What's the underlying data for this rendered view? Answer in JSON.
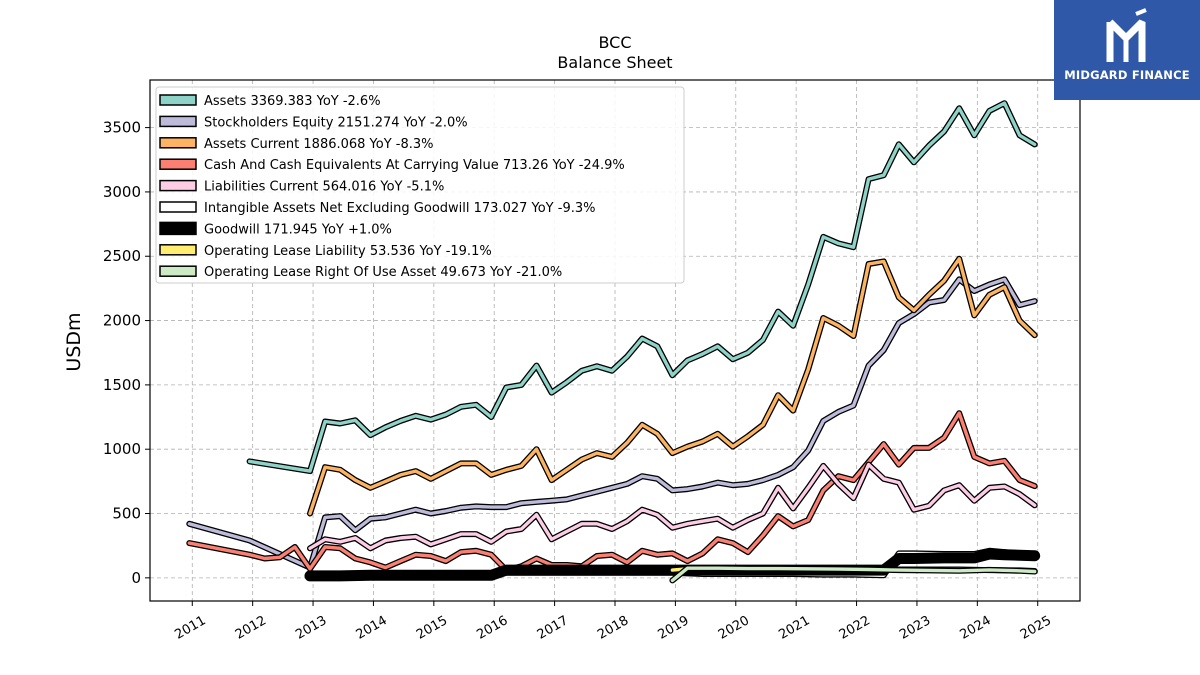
{
  "chart_data": {
    "type": "line",
    "title": "BCC",
    "subtitle": "Balance  Sheet",
    "ylabel": "USDm",
    "xlim": [
      2010.3,
      2025.7
    ],
    "ylim": [
      -180,
      3870
    ],
    "yticks": [
      0,
      500,
      1000,
      1500,
      2000,
      2500,
      3000,
      3500
    ],
    "xticks": [
      2011,
      2012,
      2013,
      2014,
      2015,
      2016,
      2017,
      2018,
      2019,
      2020,
      2021,
      2022,
      2023,
      2024,
      2025
    ],
    "xtick_labels": [
      "2011",
      "2012",
      "2013",
      "2014",
      "2015",
      "2016",
      "2017",
      "2018",
      "2019",
      "2020",
      "2021",
      "2022",
      "2023",
      "2024",
      "2025"
    ],
    "grid": true,
    "legend_position": "top-left",
    "series": [
      {
        "name": "Assets  3369.383 YoY -2.6%",
        "color": "#8dd3c7",
        "x": [
          2011.95,
          2012.95,
          2013.2,
          2013.45,
          2013.7,
          2013.95,
          2014.2,
          2014.45,
          2014.7,
          2014.95,
          2015.2,
          2015.45,
          2015.7,
          2015.95,
          2016.2,
          2016.45,
          2016.7,
          2016.95,
          2017.2,
          2017.45,
          2017.7,
          2017.95,
          2018.2,
          2018.45,
          2018.7,
          2018.95,
          2019.2,
          2019.45,
          2019.7,
          2019.95,
          2020.2,
          2020.45,
          2020.7,
          2020.95,
          2021.2,
          2021.45,
          2021.7,
          2021.95,
          2022.2,
          2022.45,
          2022.7,
          2022.95,
          2023.2,
          2023.45,
          2023.7,
          2023.95,
          2024.2,
          2024.45,
          2024.7,
          2024.95
        ],
        "y": [
          905,
          830,
          1215,
          1200,
          1225,
          1110,
          1170,
          1220,
          1260,
          1230,
          1270,
          1330,
          1345,
          1250,
          1480,
          1500,
          1650,
          1440,
          1520,
          1610,
          1645,
          1610,
          1720,
          1860,
          1800,
          1575,
          1690,
          1740,
          1800,
          1700,
          1750,
          1850,
          2070,
          1960,
          2280,
          2650,
          2600,
          2570,
          3100,
          3130,
          3370,
          3230,
          3360,
          3470,
          3650,
          3440,
          3630,
          3690,
          3440,
          3369
        ]
      },
      {
        "name": "Stockholders Equity  2151.274 YoY -2.0%",
        "color": "#bebada",
        "x": [
          2010.95,
          2011.95,
          2012.95,
          2013.2,
          2013.45,
          2013.7,
          2013.95,
          2014.2,
          2014.45,
          2014.7,
          2014.95,
          2015.2,
          2015.45,
          2015.7,
          2015.95,
          2016.2,
          2016.45,
          2016.7,
          2016.95,
          2017.2,
          2017.45,
          2017.7,
          2017.95,
          2018.2,
          2018.45,
          2018.7,
          2018.95,
          2019.2,
          2019.45,
          2019.7,
          2019.95,
          2020.2,
          2020.45,
          2020.7,
          2020.95,
          2021.2,
          2021.45,
          2021.7,
          2021.95,
          2022.2,
          2022.45,
          2022.7,
          2022.95,
          2023.2,
          2023.45,
          2023.7,
          2023.95,
          2024.2,
          2024.45,
          2024.7,
          2024.95
        ],
        "y": [
          420,
          290,
          80,
          470,
          480,
          370,
          460,
          470,
          500,
          530,
          500,
          520,
          545,
          555,
          550,
          550,
          580,
          590,
          600,
          610,
          640,
          670,
          700,
          730,
          790,
          770,
          680,
          690,
          710,
          740,
          720,
          730,
          760,
          800,
          860,
          990,
          1220,
          1290,
          1340,
          1650,
          1770,
          1980,
          2050,
          2140,
          2160,
          2320,
          2230,
          2280,
          2320,
          2120,
          2151
        ]
      },
      {
        "name": "Assets Current  1886.068 YoY -8.3%",
        "color": "#fdb462",
        "x": [
          2012.95,
          2013.2,
          2013.45,
          2013.7,
          2013.95,
          2014.2,
          2014.45,
          2014.7,
          2014.95,
          2015.2,
          2015.45,
          2015.7,
          2015.95,
          2016.2,
          2016.45,
          2016.7,
          2016.95,
          2017.2,
          2017.45,
          2017.7,
          2017.95,
          2018.2,
          2018.45,
          2018.7,
          2018.95,
          2019.2,
          2019.45,
          2019.7,
          2019.95,
          2020.2,
          2020.45,
          2020.7,
          2020.95,
          2021.2,
          2021.45,
          2021.7,
          2021.95,
          2022.2,
          2022.45,
          2022.7,
          2022.95,
          2023.2,
          2023.45,
          2023.7,
          2023.95,
          2024.2,
          2024.45,
          2024.7,
          2024.95
        ],
        "y": [
          500,
          860,
          840,
          760,
          700,
          750,
          800,
          830,
          770,
          830,
          890,
          890,
          800,
          840,
          870,
          1000,
          760,
          840,
          920,
          970,
          940,
          1050,
          1190,
          1120,
          970,
          1020,
          1060,
          1120,
          1020,
          1100,
          1190,
          1420,
          1300,
          1620,
          2020,
          1960,
          1880,
          2440,
          2460,
          2180,
          2080,
          2200,
          2310,
          2480,
          2040,
          2200,
          2260,
          2000,
          1886
        ]
      },
      {
        "name": "Cash And Cash Equivalents At Carrying Value  713.26 YoY -24.9%",
        "color": "#fb8072",
        "x": [
          2010.95,
          2011.95,
          2012.2,
          2012.45,
          2012.7,
          2012.95,
          2013.2,
          2013.45,
          2013.7,
          2013.95,
          2014.2,
          2014.45,
          2014.7,
          2014.95,
          2015.2,
          2015.45,
          2015.7,
          2015.95,
          2016.2,
          2016.45,
          2016.7,
          2016.95,
          2017.2,
          2017.45,
          2017.7,
          2017.95,
          2018.2,
          2018.45,
          2018.7,
          2018.95,
          2019.2,
          2019.45,
          2019.7,
          2019.95,
          2020.2,
          2020.45,
          2020.7,
          2020.95,
          2021.2,
          2021.45,
          2021.7,
          2021.95,
          2022.2,
          2022.45,
          2022.7,
          2022.95,
          2023.2,
          2023.45,
          2023.7,
          2023.95,
          2024.2,
          2024.45,
          2024.7,
          2024.95
        ],
        "y": [
          270,
          180,
          150,
          160,
          240,
          70,
          240,
          230,
          150,
          120,
          80,
          130,
          180,
          170,
          130,
          200,
          210,
          180,
          60,
          90,
          150,
          100,
          100,
          90,
          170,
          180,
          120,
          210,
          180,
          190,
          130,
          190,
          300,
          270,
          200,
          330,
          480,
          400,
          450,
          680,
          790,
          760,
          900,
          1040,
          880,
          1010,
          1010,
          1090,
          1280,
          940,
          890,
          910,
          760,
          713
        ]
      },
      {
        "name": "Liabilities Current  564.016 YoY -5.1%",
        "color": "#fccde5",
        "x": [
          2012.95,
          2013.2,
          2013.45,
          2013.7,
          2013.95,
          2014.2,
          2014.45,
          2014.7,
          2014.95,
          2015.2,
          2015.45,
          2015.7,
          2015.95,
          2016.2,
          2016.45,
          2016.7,
          2016.95,
          2017.2,
          2017.45,
          2017.7,
          2017.95,
          2018.2,
          2018.45,
          2018.7,
          2018.95,
          2019.2,
          2019.45,
          2019.7,
          2019.95,
          2020.2,
          2020.45,
          2020.7,
          2020.95,
          2021.2,
          2021.45,
          2021.7,
          2021.95,
          2022.2,
          2022.45,
          2022.7,
          2022.95,
          2023.2,
          2023.45,
          2023.7,
          2023.95,
          2024.2,
          2024.45,
          2024.7,
          2024.95
        ],
        "y": [
          230,
          300,
          280,
          310,
          230,
          290,
          310,
          320,
          260,
          300,
          340,
          340,
          280,
          360,
          380,
          490,
          300,
          360,
          420,
          420,
          380,
          440,
          530,
          490,
          390,
          420,
          440,
          460,
          390,
          450,
          500,
          700,
          540,
          700,
          870,
          730,
          620,
          880,
          770,
          740,
          530,
          560,
          680,
          720,
          600,
          700,
          710,
          650,
          564
        ]
      },
      {
        "name": "Intangible Assets Net Excluding Goodwill  173.027 YoY -9.3%",
        "color": "#ffffff",
        "x": [
          2012.95,
          2013.45,
          2013.95,
          2014.45,
          2014.95,
          2015.45,
          2015.95,
          2016.2,
          2016.45,
          2016.95,
          2017.45,
          2017.95,
          2018.45,
          2018.95,
          2019.45,
          2019.95,
          2020.45,
          2020.95,
          2021.45,
          2021.95,
          2022.45,
          2022.7,
          2022.95,
          2023.45,
          2023.95,
          2024.2,
          2024.45,
          2024.95
        ],
        "y": [
          10,
          10,
          10,
          10,
          10,
          10,
          10,
          40,
          40,
          40,
          40,
          40,
          40,
          40,
          30,
          30,
          30,
          30,
          25,
          25,
          20,
          190,
          190,
          185,
          185,
          210,
          200,
          173
        ]
      },
      {
        "name": "Goodwill  171.945 YoY +1.0%",
        "color": "#000000",
        "x": [
          2012.95,
          2013.45,
          2013.95,
          2014.45,
          2014.95,
          2015.45,
          2015.95,
          2016.2,
          2016.45,
          2016.95,
          2017.45,
          2017.95,
          2018.45,
          2018.95,
          2019.45,
          2019.95,
          2020.45,
          2020.95,
          2021.45,
          2021.95,
          2022.45,
          2022.7,
          2022.95,
          2023.45,
          2023.95,
          2024.2,
          2024.45,
          2024.95
        ],
        "y": [
          15,
          15,
          20,
          20,
          20,
          20,
          20,
          60,
          60,
          60,
          60,
          60,
          60,
          60,
          60,
          60,
          60,
          60,
          60,
          60,
          60,
          150,
          150,
          155,
          155,
          185,
          180,
          172
        ]
      },
      {
        "name": "Operating Lease Liability  53.536 YoY -19.1%",
        "color": "#ffed6f",
        "x": [
          2018.95,
          2019.2,
          2019.7,
          2020.2,
          2020.7,
          2021.2,
          2021.7,
          2022.2,
          2022.7,
          2023.2,
          2023.7,
          2024.2,
          2024.7,
          2024.95
        ],
        "y": [
          60,
          70,
          70,
          70,
          70,
          70,
          70,
          70,
          65,
          65,
          65,
          60,
          58,
          53.5
        ]
      },
      {
        "name": "Operating Lease Right Of Use Asset  49.673 YoY -21.0%",
        "color": "#ccebc5",
        "x": [
          2018.95,
          2019.2,
          2019.7,
          2020.2,
          2020.7,
          2021.2,
          2021.7,
          2022.2,
          2022.7,
          2023.2,
          2023.7,
          2024.2,
          2024.7,
          2024.95
        ],
        "y": [
          -20,
          75,
          75,
          72,
          72,
          70,
          68,
          65,
          60,
          58,
          55,
          62,
          55,
          49.7
        ]
      }
    ]
  },
  "brand": {
    "name": "MIDGARD FINANCE",
    "logo_icon": "midgard-m-icon",
    "background": "#2f58a8"
  }
}
